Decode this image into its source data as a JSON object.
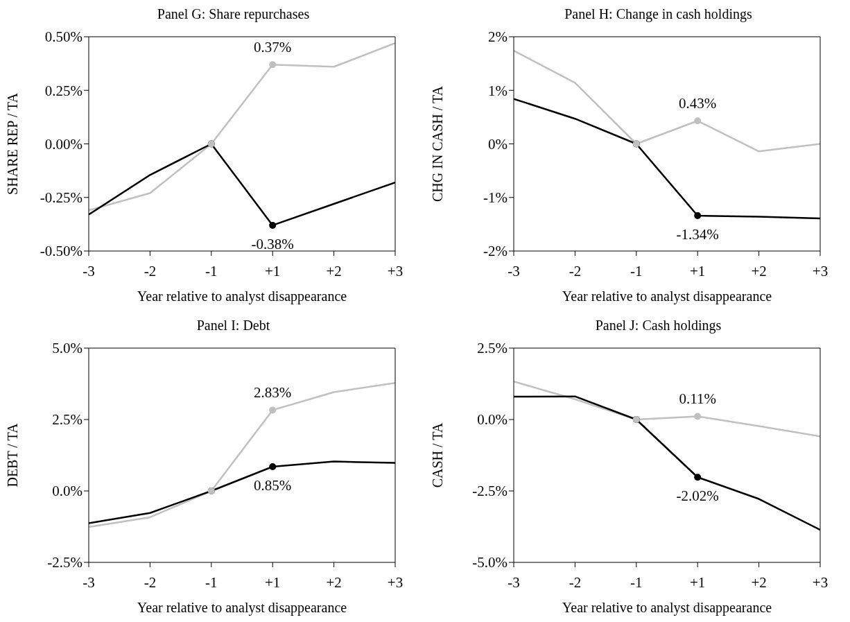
{
  "chart_data": [
    {
      "type": "line",
      "title": "Panel G: Share repurchases",
      "xlabel": "Year relative to analyst disappearance",
      "ylabel": "SHARE REP / TA",
      "categories": [
        "-3",
        "-2",
        "-1",
        "+1",
        "+2",
        "+3"
      ],
      "ylim": [
        -0.5,
        0.5
      ],
      "yticks": [
        {
          "value": -0.5,
          "label": "-0.50%"
        },
        {
          "value": -0.25,
          "label": "-0.25%"
        },
        {
          "value": 0,
          "label": "0.00%"
        },
        {
          "value": 0.25,
          "label": "0.25%"
        },
        {
          "value": 0.5,
          "label": "0.50%"
        }
      ],
      "grid": false,
      "legend": false,
      "series": [
        {
          "color": "#c0c0c0",
          "values": [
            -0.31,
            -0.23,
            0,
            0.37,
            0.36,
            0.47
          ]
        },
        {
          "color": "#000000",
          "values": [
            -0.33,
            -0.145,
            0,
            -0.38,
            -0.28,
            -0.18
          ]
        },
        {
          "type": "scatter",
          "marker": "circle",
          "color": "#000000",
          "x": [
            "-1",
            "+1"
          ],
          "values": [
            0,
            -0.38
          ],
          "value_labels": [
            null,
            "-0.38%"
          ]
        },
        {
          "type": "scatter",
          "marker": "circle",
          "color": "#c0c0c0",
          "x": [
            "-1",
            "+1"
          ],
          "values": [
            0,
            0.37
          ],
          "value_labels": [
            null,
            "0.37%"
          ]
        }
      ]
    },
    {
      "type": "line",
      "title": "Panel H: Change in cash holdings",
      "xlabel": "Year relative to analyst disappearance",
      "ylabel": "CHG IN CASH / TA",
      "categories": [
        "-3",
        "-2",
        "-1",
        "+1",
        "+2",
        "+3"
      ],
      "ylim": [
        -2,
        2
      ],
      "yticks": [
        {
          "value": -2,
          "label": "-2%"
        },
        {
          "value": -1,
          "label": "-1%"
        },
        {
          "value": 0,
          "label": "0%"
        },
        {
          "value": 1,
          "label": "1%"
        },
        {
          "value": 2,
          "label": "2%"
        }
      ],
      "grid": false,
      "legend": false,
      "series": [
        {
          "color": "#c0c0c0",
          "values": [
            1.74,
            1.14,
            0,
            0.43,
            -0.14,
            0
          ]
        },
        {
          "color": "#000000",
          "values": [
            0.84,
            0.47,
            0,
            -1.34,
            -1.36,
            -1.39
          ]
        },
        {
          "type": "scatter",
          "marker": "circle",
          "color": "#000000",
          "x": [
            "-1",
            "+1"
          ],
          "values": [
            0,
            -1.34
          ],
          "value_labels": [
            null,
            "-1.34%"
          ]
        },
        {
          "type": "scatter",
          "marker": "circle",
          "color": "#c0c0c0",
          "x": [
            "-1",
            "+1"
          ],
          "values": [
            0,
            0.43
          ],
          "value_labels": [
            null,
            "0.43%"
          ]
        }
      ]
    },
    {
      "type": "line",
      "title": "Panel I: Debt",
      "xlabel": "Year relative to analyst disappearance",
      "ylabel": "DEBT / TA",
      "categories": [
        "-3",
        "-2",
        "-1",
        "+1",
        "+2",
        "+3"
      ],
      "ylim": [
        -2.5,
        5
      ],
      "yticks": [
        {
          "value": -2.5,
          "label": "-2.5%"
        },
        {
          "value": 0,
          "label": "0.0%"
        },
        {
          "value": 2.5,
          "label": "2.5%"
        },
        {
          "value": 5,
          "label": "5.0%"
        }
      ],
      "grid": false,
      "legend": false,
      "series": [
        {
          "color": "#c0c0c0",
          "values": [
            -1.26,
            -0.92,
            0,
            2.83,
            3.46,
            3.78
          ]
        },
        {
          "color": "#000000",
          "values": [
            -1.13,
            -0.77,
            0,
            0.85,
            1.03,
            0.98
          ]
        },
        {
          "type": "scatter",
          "marker": "circle",
          "color": "#000000",
          "x": [
            "-1",
            "+1"
          ],
          "values": [
            0,
            0.85
          ],
          "value_labels": [
            null,
            "0.85%"
          ]
        },
        {
          "type": "scatter",
          "marker": "circle",
          "color": "#c0c0c0",
          "x": [
            "-1",
            "+1"
          ],
          "values": [
            0,
            2.83
          ],
          "value_labels": [
            null,
            "2.83%"
          ]
        }
      ]
    },
    {
      "type": "line",
      "title": "Panel J: Cash holdings",
      "xlabel": "Year relative to analyst disappearance",
      "ylabel": "CASH / TA",
      "categories": [
        "-3",
        "-2",
        "-1",
        "+1",
        "+2",
        "+3"
      ],
      "ylim": [
        -5,
        2.5
      ],
      "yticks": [
        {
          "value": -5,
          "label": "-5.0%"
        },
        {
          "value": -2.5,
          "label": "-2.5%"
        },
        {
          "value": 0,
          "label": "0.0%"
        },
        {
          "value": 2.5,
          "label": "2.5%"
        }
      ],
      "grid": false,
      "legend": false,
      "series": [
        {
          "color": "#c0c0c0",
          "values": [
            1.33,
            0.71,
            0,
            0.11,
            -0.23,
            -0.59
          ]
        },
        {
          "color": "#000000",
          "values": [
            0.8,
            0.81,
            0,
            -2.02,
            -2.78,
            -3.86
          ]
        },
        {
          "type": "scatter",
          "marker": "circle",
          "color": "#000000",
          "x": [
            "-1",
            "+1"
          ],
          "values": [
            0,
            -2.02
          ],
          "value_labels": [
            null,
            "-2.02%"
          ]
        },
        {
          "type": "scatter",
          "marker": "circle",
          "color": "#c0c0c0",
          "x": [
            "-1",
            "+1"
          ],
          "values": [
            0,
            0.11
          ],
          "value_labels": [
            null,
            "0.11%"
          ]
        }
      ]
    }
  ]
}
